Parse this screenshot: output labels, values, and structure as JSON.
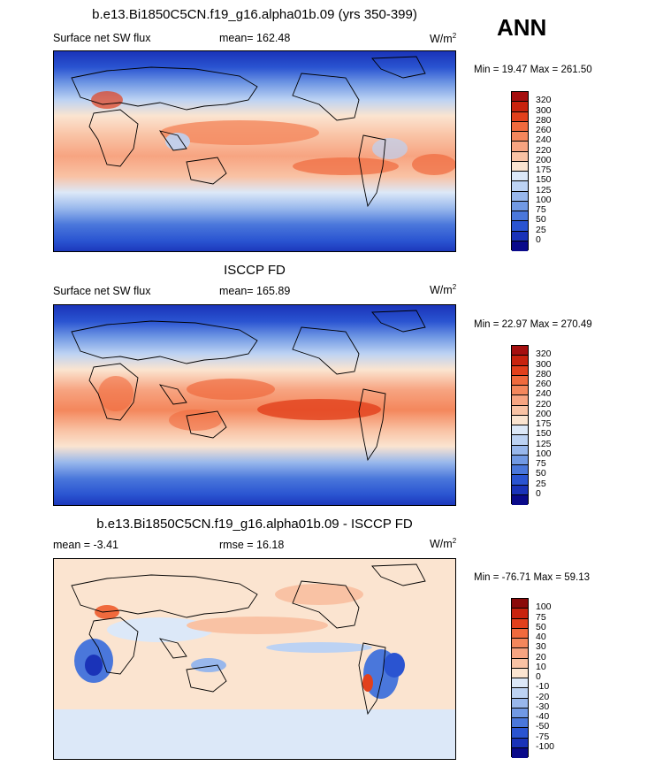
{
  "season": "ANN",
  "panels": [
    {
      "title": "b.e13.Bi1850C5CN.f19_g16.alpha01b.09 (yrs 350-399)",
      "left_label": "Surface net SW flux",
      "center_label": "mean= 162.48",
      "units": "W/m",
      "units_exp": "2",
      "minmax": "Min =  19.47 Max = 261.50",
      "levels": [
        "320",
        "300",
        "280",
        "260",
        "240",
        "220",
        "200",
        "175",
        "150",
        "125",
        "100",
        "75",
        "50",
        "25",
        "0"
      ],
      "colors": [
        "#a50f0f",
        "#c8230e",
        "#e2401c",
        "#f06a3d",
        "#f4875c",
        "#f7a481",
        "#f9c2a4",
        "#fbe4d0",
        "#dce8f8",
        "#bcd2f3",
        "#98b7ec",
        "#7199e4",
        "#4a77db",
        "#2a54d1",
        "#1a33b8",
        "#0a0a8a"
      ]
    },
    {
      "title": "ISCCP FD",
      "left_label": "Surface net SW flux",
      "center_label": "mean= 165.89",
      "units": "W/m",
      "units_exp": "2",
      "minmax": "Min =  22.97 Max = 270.49",
      "levels": [
        "320",
        "300",
        "280",
        "260",
        "240",
        "220",
        "200",
        "175",
        "150",
        "125",
        "100",
        "75",
        "50",
        "25",
        "0"
      ],
      "colors": [
        "#a50f0f",
        "#c8230e",
        "#e2401c",
        "#f06a3d",
        "#f4875c",
        "#f7a481",
        "#f9c2a4",
        "#fbe4d0",
        "#dce8f8",
        "#bcd2f3",
        "#98b7ec",
        "#7199e4",
        "#4a77db",
        "#2a54d1",
        "#1a33b8",
        "#0a0a8a"
      ]
    },
    {
      "title": "b.e13.Bi1850C5CN.f19_g16.alpha01b.09 - ISCCP FD",
      "left_label": "mean =  -3.41",
      "center_label": "rmse =  16.18",
      "units": "W/m",
      "units_exp": "2",
      "minmax": "Min = -76.71 Max =  59.13",
      "levels": [
        "100",
        "75",
        "50",
        "40",
        "30",
        "20",
        "10",
        "0",
        "-10",
        "-20",
        "-30",
        "-40",
        "-50",
        "-75",
        "-100"
      ],
      "colors": [
        "#8a0a0a",
        "#c8230e",
        "#e2401c",
        "#f06a3d",
        "#f4875c",
        "#f7a481",
        "#f9c2a4",
        "#fbe4d0",
        "#dce8f8",
        "#bcd2f3",
        "#98b7ec",
        "#7199e4",
        "#4a77db",
        "#2a54d1",
        "#1a33b8",
        "#0a0a8a"
      ]
    }
  ]
}
